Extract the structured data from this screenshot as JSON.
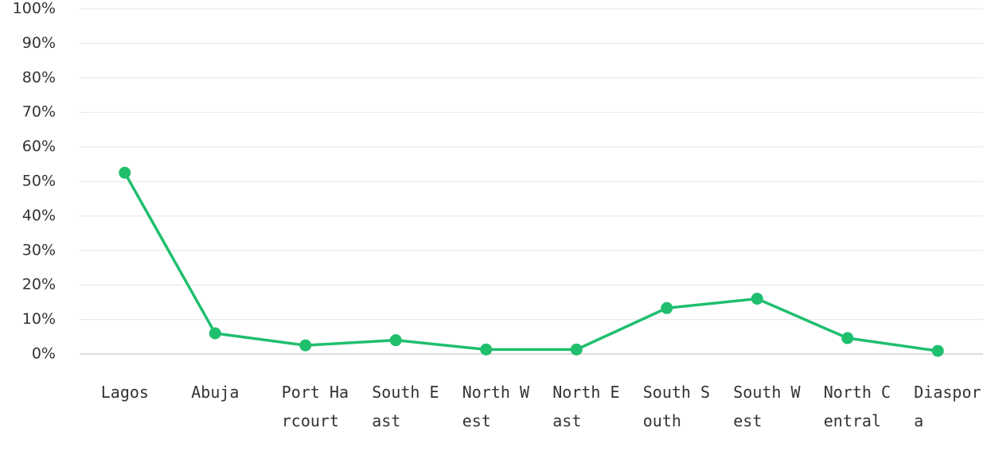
{
  "chart_data": {
    "type": "line",
    "categories": [
      "Lagos",
      "Abuja",
      "Port Harcourt",
      "South East",
      "North West",
      "North East",
      "South South",
      "South West",
      "North Central",
      "Diaspora"
    ],
    "series": [
      {
        "color": "#1fbf6e",
        "values": [
          52.5,
          6,
          2.5,
          4,
          1.3,
          1.3,
          13.3,
          16,
          4.6,
          0.9
        ]
      }
    ],
    "ylim": [
      0,
      100
    ],
    "yticks": [
      {
        "value": 0,
        "label": "0%"
      },
      {
        "value": 10,
        "label": "10%"
      },
      {
        "value": 20,
        "label": "20%"
      },
      {
        "value": 30,
        "label": "30%"
      },
      {
        "value": 40,
        "label": "40%"
      },
      {
        "value": 50,
        "label": "50%"
      },
      {
        "value": 60,
        "label": "60%"
      },
      {
        "value": 70,
        "label": "70%"
      },
      {
        "value": 80,
        "label": "80%"
      },
      {
        "value": 90,
        "label": "90%"
      },
      {
        "value": 100,
        "label": "100%"
      }
    ],
    "grid": true
  }
}
